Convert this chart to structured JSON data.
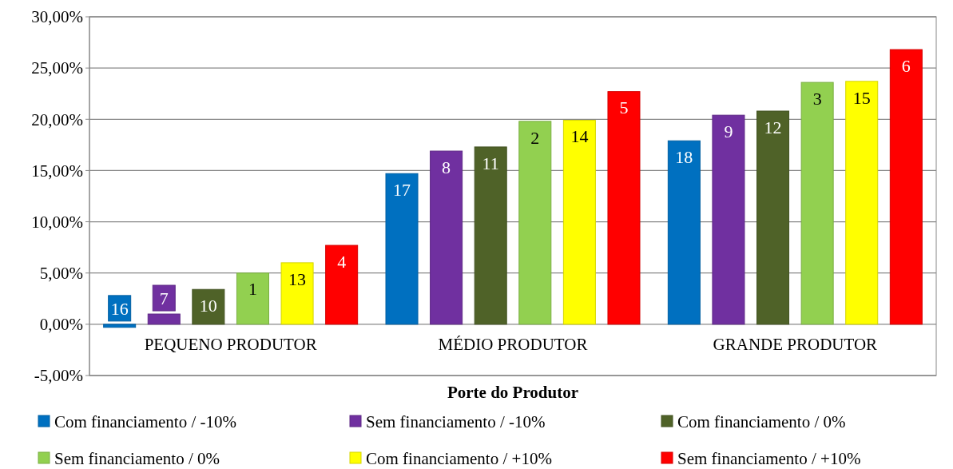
{
  "chart_data": {
    "type": "bar",
    "xlabel": "Porte do Produtor",
    "categories": [
      "PEQUENO PRODUTOR",
      "MÉDIO PRODUTOR",
      "GRANDE PRODUTOR"
    ],
    "series": [
      {
        "name": "Com financiamento / -10%",
        "color": "#0070c0",
        "values": [
          -0.3,
          14.7,
          17.9
        ]
      },
      {
        "name": "Sem financiamento / -10%",
        "color": "#7030a0",
        "values": [
          1.0,
          16.9,
          20.4
        ]
      },
      {
        "name": "Com financiamento / 0%",
        "color": "#4f6228",
        "values": [
          3.4,
          17.3,
          20.8
        ]
      },
      {
        "name": "Sem financiamento / 0%",
        "color": "#92d050",
        "values": [
          5.0,
          19.8,
          23.6
        ]
      },
      {
        "name": "Com financiamento / +10%",
        "color": "#ffff00",
        "values": [
          6.0,
          19.9,
          23.7
        ]
      },
      {
        "name": "Sem financiamento / +10%",
        "color": "#ff0000",
        "values": [
          7.7,
          22.7,
          26.8
        ]
      }
    ],
    "annotations": [
      "16",
      "17",
      "18",
      "7",
      "8",
      "9",
      "10",
      "11",
      "12",
      "1",
      "2",
      "3",
      "13",
      "14",
      "15",
      "4",
      "5",
      "6"
    ],
    "ylim": [
      -5,
      30
    ],
    "yticks": [
      {
        "value": -5,
        "label": "-5,00%"
      },
      {
        "value": 0,
        "label": "0,00%"
      },
      {
        "value": 5,
        "label": "5,00%"
      },
      {
        "value": 10,
        "label": "10,00%"
      },
      {
        "value": 15,
        "label": "15,00%"
      },
      {
        "value": 20,
        "label": "20,00%"
      },
      {
        "value": 25,
        "label": "25,00%"
      },
      {
        "value": 30,
        "label": "30,00%"
      }
    ],
    "grid": "y",
    "legend": "bottom"
  }
}
